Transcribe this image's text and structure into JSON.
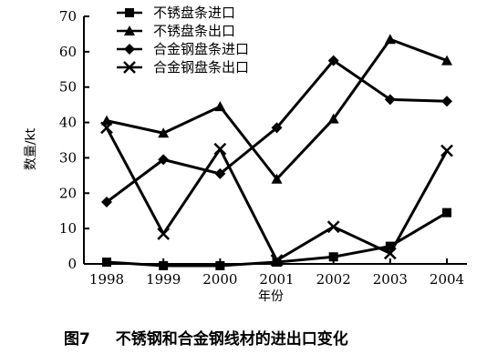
{
  "chart_data": {
    "type": "line",
    "xlabel": "年份",
    "ylabel": "数量/kt",
    "x": [
      "1998",
      "1999",
      "2000",
      "2001",
      "2002",
      "2003",
      "2004"
    ],
    "ylim": [
      0,
      70
    ],
    "yticks": [
      "0",
      "10",
      "20",
      "30",
      "40",
      "50",
      "60",
      "70"
    ],
    "grid": false,
    "legend_position": "top-center",
    "series": [
      {
        "name": "不锈盘条进口",
        "marker": "square",
        "values": [
          0.5,
          -0.5,
          -0.5,
          0.5,
          2,
          5,
          14.5
        ]
      },
      {
        "name": "不锈盘条出口",
        "marker": "triangle",
        "values": [
          40.5,
          37,
          44.5,
          24,
          41,
          63.5,
          57.5
        ]
      },
      {
        "name": "合金钢盘条进口",
        "marker": "diamond",
        "values": [
          17.5,
          29.5,
          25.5,
          38.5,
          57.5,
          46.5,
          46
        ]
      },
      {
        "name": "合金钢盘条出口",
        "marker": "cross",
        "values": [
          38.5,
          8.5,
          32.5,
          1,
          10.5,
          3,
          32
        ]
      }
    ]
  },
  "caption": {
    "figure_no": "图7",
    "text": "不锈钢和合金钢线材的进出口变化"
  }
}
